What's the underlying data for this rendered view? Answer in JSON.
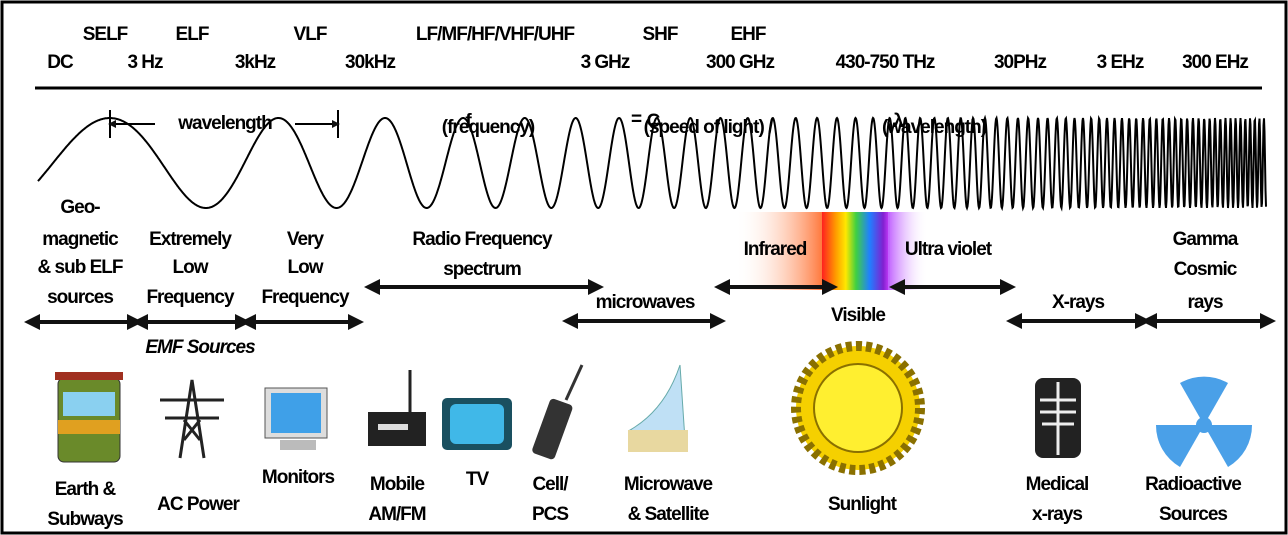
{
  "bands": {
    "names": [
      "SELF",
      "ELF",
      "VLF",
      "LF/MF/HF/VHF/UHF",
      "SHF",
      "EHF"
    ],
    "frequencies": [
      "DC",
      "3 Hz",
      "3kHz",
      "30kHz",
      "3 GHz",
      "300 GHz",
      "430-750 THz",
      "30PHz",
      "3 EHz",
      "300 EHz"
    ]
  },
  "formula": {
    "f": "f",
    "f_label": "(frequency)",
    "equals": "=",
    "c": "C",
    "c_label": "(speed of light) /",
    "lambda": "λ",
    "lambda_label": "(wavelength)"
  },
  "wavelength_label": "wavelength",
  "regions": [
    {
      "lines": [
        "Geo-",
        "magnetic",
        "& sub ELF",
        "sources"
      ]
    },
    {
      "lines": [
        "Extremely",
        "Low",
        "Frequency"
      ]
    },
    {
      "lines": [
        "Very",
        "Low",
        "Frequency"
      ]
    },
    {
      "lines": [
        "Radio Frequency",
        "spectrum"
      ]
    },
    {
      "lines": [
        "microwaves"
      ]
    },
    {
      "lines": [
        "Infrared"
      ]
    },
    {
      "lines": [
        "Visible"
      ]
    },
    {
      "lines": [
        "Ultra violet"
      ]
    },
    {
      "lines": [
        "X-rays"
      ]
    },
    {
      "lines": [
        "Gamma",
        "Cosmic",
        "rays"
      ]
    }
  ],
  "emf_title": "EMF Sources",
  "sources": [
    {
      "lines": [
        "Earth &",
        "Subways"
      ]
    },
    {
      "lines": [
        "AC Power"
      ]
    },
    {
      "lines": [
        "Monitors"
      ]
    },
    {
      "lines": [
        "Mobile",
        "AM/FM"
      ]
    },
    {
      "lines": [
        "TV"
      ]
    },
    {
      "lines": [
        "Cell/",
        "PCS"
      ]
    },
    {
      "lines": [
        "Microwave",
        "& Satellite"
      ]
    },
    {
      "lines": [
        "Sunlight"
      ]
    },
    {
      "lines": [
        "Medical",
        "x-rays"
      ]
    },
    {
      "lines": [
        "Radioactive",
        "Sources"
      ]
    }
  ]
}
